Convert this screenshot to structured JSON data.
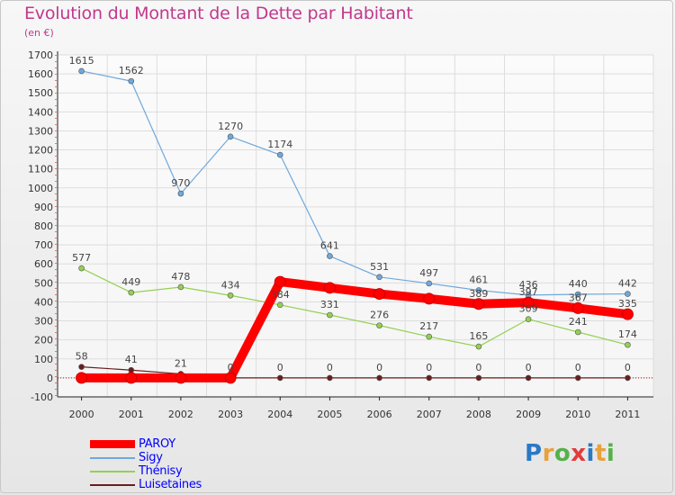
{
  "header": {
    "title": "Evolution du Montant de la Dette par Habitant",
    "unit": "(en €)"
  },
  "logo": {
    "text": "Proxiti"
  },
  "chart_data": {
    "type": "line",
    "title": "Evolution du Montant de la Dette par Habitant",
    "subtitle": "(en €)",
    "xlabel": "",
    "ylabel": "",
    "categories": [
      "2000",
      "2001",
      "2002",
      "2003",
      "2004",
      "2005",
      "2006",
      "2007",
      "2008",
      "2009",
      "2010",
      "2011"
    ],
    "ylim": [
      -100,
      1700
    ],
    "yticks": [
      -100,
      0,
      100,
      200,
      300,
      400,
      500,
      600,
      700,
      800,
      900,
      1000,
      1100,
      1200,
      1300,
      1400,
      1500,
      1600,
      1700
    ],
    "grid": true,
    "legend_position": "bottom-left",
    "series": [
      {
        "name": "PAROY",
        "color": "#ff0000",
        "values": [
          0,
          0,
          0,
          0,
          506,
          474,
          442,
          417,
          389,
          397,
          367,
          335
        ],
        "labels": [
          "",
          "",
          "",
          "",
          "",
          "",
          "",
          "",
          "389",
          "397",
          "367",
          "335"
        ]
      },
      {
        "name": "Sigy",
        "color": "#6fa8dc",
        "values": [
          1615,
          1562,
          970,
          1270,
          1174,
          641,
          531,
          497,
          461,
          436,
          440,
          442
        ],
        "labels": [
          "1615",
          "1562",
          "970",
          "1270",
          "1174",
          "641",
          "531",
          "497",
          "461",
          "436",
          "440",
          "442"
        ]
      },
      {
        "name": "Thénisy",
        "color": "#93d150",
        "values": [
          577,
          449,
          478,
          434,
          384,
          331,
          276,
          217,
          165,
          309,
          241,
          174
        ],
        "labels": [
          "577",
          "449",
          "478",
          "434",
          "384",
          "331",
          "276",
          "217",
          "165",
          "309",
          "241",
          "174"
        ]
      },
      {
        "name": "Luisetaines",
        "color": "#6b1d1d",
        "values": [
          58,
          41,
          21,
          0,
          0,
          0,
          0,
          0,
          0,
          0,
          0,
          0
        ],
        "labels": [
          "58",
          "41",
          "21",
          "0",
          "0",
          "0",
          "0",
          "0",
          "0",
          "0",
          "0",
          "0"
        ]
      }
    ]
  },
  "colors": {
    "title": "#c2388c",
    "axis": "#222222",
    "grid": "#dddddd",
    "zero_line": "#cc0000"
  }
}
